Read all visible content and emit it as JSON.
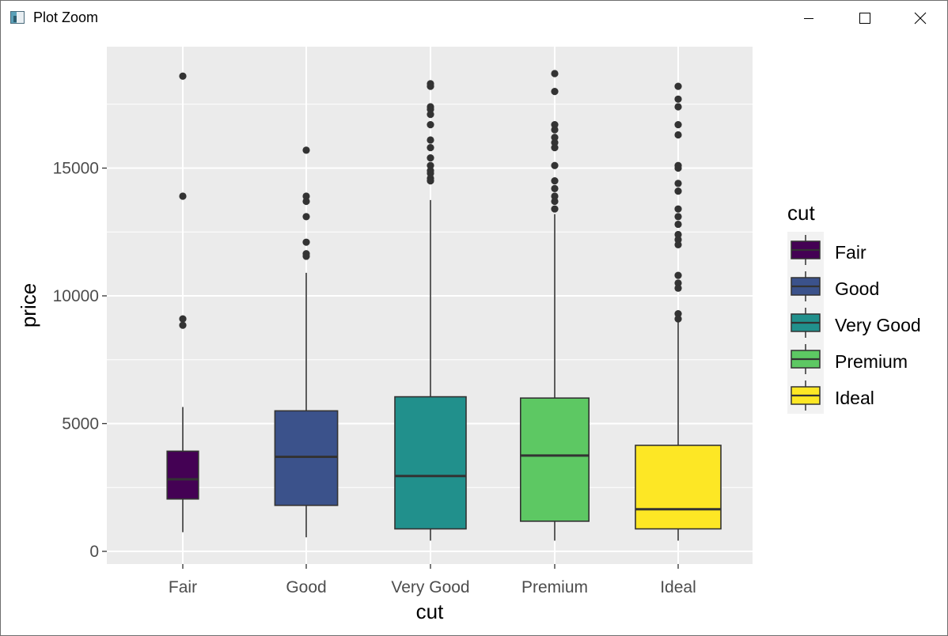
{
  "window": {
    "title": "Plot Zoom",
    "icon": "plot-zoom-app-icon",
    "controls": [
      "minimize-icon",
      "maximize-icon",
      "close-icon"
    ]
  },
  "chart_data": {
    "type": "boxplot",
    "title": "",
    "xlabel": "cut",
    "ylabel": "price",
    "categories": [
      "Fair",
      "Good",
      "Very Good",
      "Premium",
      "Ideal"
    ],
    "ylim": [
      -600,
      19500
    ],
    "yticks": [
      0,
      5000,
      10000,
      15000
    ],
    "ytick_labels": [
      "0",
      "5000",
      "10000",
      "15000"
    ],
    "grid": true,
    "legend": {
      "title": "cut",
      "position": "right",
      "entries": [
        "Fair",
        "Good",
        "Very Good",
        "Premium",
        "Ideal"
      ]
    },
    "colors": {
      "Fair": "#440154",
      "Good": "#3b528b",
      "Very Good": "#21908c",
      "Premium": "#5dc863",
      "Ideal": "#fde725"
    },
    "boxes": [
      {
        "category": "Fair",
        "whisker_low": 750,
        "q1": 2050,
        "median": 2820,
        "q3": 3920,
        "whisker_high": 5650,
        "outliers": [
          18600,
          13900,
          9100,
          8850
        ],
        "relative_width": 0.44
      },
      {
        "category": "Good",
        "whisker_low": 550,
        "q1": 1800,
        "median": 3700,
        "q3": 5500,
        "whisker_high": 10900,
        "outliers": [
          15700,
          13900,
          13700,
          13100,
          12100,
          11650,
          11550
        ],
        "relative_width": 0.88
      },
      {
        "category": "Very Good",
        "whisker_low": 420,
        "q1": 880,
        "median": 2950,
        "q3": 6050,
        "whisker_high": 13750,
        "outliers": [
          18300,
          18200,
          17400,
          17300,
          17100,
          16700,
          16100,
          15800,
          15400,
          15100,
          14900,
          14800,
          14600,
          14500
        ],
        "relative_width": 1.0
      },
      {
        "category": "Premium",
        "whisker_low": 420,
        "q1": 1180,
        "median": 3750,
        "q3": 6000,
        "whisker_high": 13200,
        "outliers": [
          18700,
          18000,
          16700,
          16500,
          16200,
          16000,
          15800,
          15100,
          14500,
          14200,
          13900,
          13700,
          13400
        ],
        "relative_width": 0.96
      },
      {
        "category": "Ideal",
        "whisker_low": 420,
        "q1": 880,
        "median": 1650,
        "q3": 4150,
        "whisker_high": 9050,
        "outliers": [
          18200,
          17700,
          17400,
          16700,
          16300,
          15100,
          15000,
          14400,
          14100,
          13400,
          13100,
          12800,
          12400,
          12200,
          12000,
          10800,
          10500,
          10300,
          9300,
          9100
        ],
        "relative_width": 1.2
      }
    ]
  }
}
